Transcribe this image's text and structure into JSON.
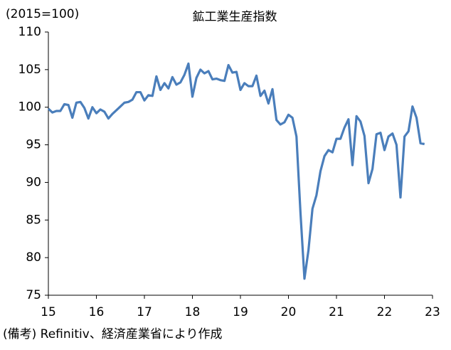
{
  "chart_data": {
    "type": "line",
    "title": "鉱工業生産指数",
    "ylabel": "(2015=100)",
    "note": "(備考) Refinitiv、経済産業省により作成",
    "xlim": [
      15,
      23
    ],
    "xticks": [
      15,
      16,
      17,
      18,
      19,
      20,
      21,
      22,
      23
    ],
    "ylim": [
      75,
      110
    ],
    "yticks": [
      75,
      80,
      85,
      90,
      95,
      100,
      105,
      110
    ],
    "x": [
      15,
      15.083,
      15.167,
      15.25,
      15.333,
      15.417,
      15.5,
      15.583,
      15.667,
      15.75,
      15.833,
      15.917,
      16,
      16.083,
      16.167,
      16.25,
      16.333,
      16.417,
      16.5,
      16.583,
      16.667,
      16.75,
      16.833,
      16.917,
      17,
      17.083,
      17.167,
      17.25,
      17.333,
      17.417,
      17.5,
      17.583,
      17.667,
      17.75,
      17.833,
      17.917,
      18,
      18.083,
      18.167,
      18.25,
      18.333,
      18.417,
      18.5,
      18.583,
      18.667,
      18.75,
      18.833,
      18.917,
      19,
      19.083,
      19.167,
      19.25,
      19.333,
      19.417,
      19.5,
      19.583,
      19.667,
      19.75,
      19.833,
      19.917,
      20,
      20.083,
      20.167,
      20.25,
      20.333,
      20.417,
      20.5,
      20.583,
      20.667,
      20.75,
      20.833,
      20.917,
      21,
      21.083,
      21.167,
      21.25,
      21.333,
      21.417,
      21.5,
      21.583,
      21.667,
      21.75,
      21.833,
      21.917,
      22,
      22.083,
      22.167,
      22.25,
      22.333,
      22.417,
      22.5,
      22.583,
      22.667,
      22.75,
      22.833
    ],
    "series": [
      {
        "color": "#4a7ebb",
        "values": [
          99.8,
          99.3,
          99.5,
          99.5,
          100.4,
          100.3,
          98.6,
          100.6,
          100.7,
          99.9,
          98.5,
          100.0,
          99.2,
          99.7,
          99.4,
          98.5,
          99.1,
          99.6,
          100.1,
          100.6,
          100.7,
          101.0,
          102.0,
          102.0,
          100.9,
          101.6,
          101.5,
          104.1,
          102.3,
          103.2,
          102.5,
          104.0,
          103.0,
          103.3,
          104.3,
          105.8,
          101.4,
          103.9,
          105.0,
          104.5,
          104.8,
          103.7,
          103.8,
          103.6,
          103.5,
          105.6,
          104.6,
          104.7,
          102.3,
          103.2,
          102.8,
          102.8,
          104.2,
          101.5,
          102.2,
          100.5,
          102.4,
          98.3,
          97.7,
          98.0,
          99.0,
          98.6,
          96.1,
          86.0,
          77.2,
          81.0,
          86.5,
          88.3,
          91.5,
          93.5,
          94.3,
          94.0,
          95.8,
          95.8,
          97.3,
          98.4,
          92.3,
          98.8,
          98.1,
          96.2,
          89.9,
          91.8,
          96.4,
          96.6,
          94.3,
          96.1,
          96.5,
          95.0,
          88.0,
          96.1,
          96.8,
          100.1,
          98.6,
          95.2,
          95.1
        ]
      }
    ]
  }
}
